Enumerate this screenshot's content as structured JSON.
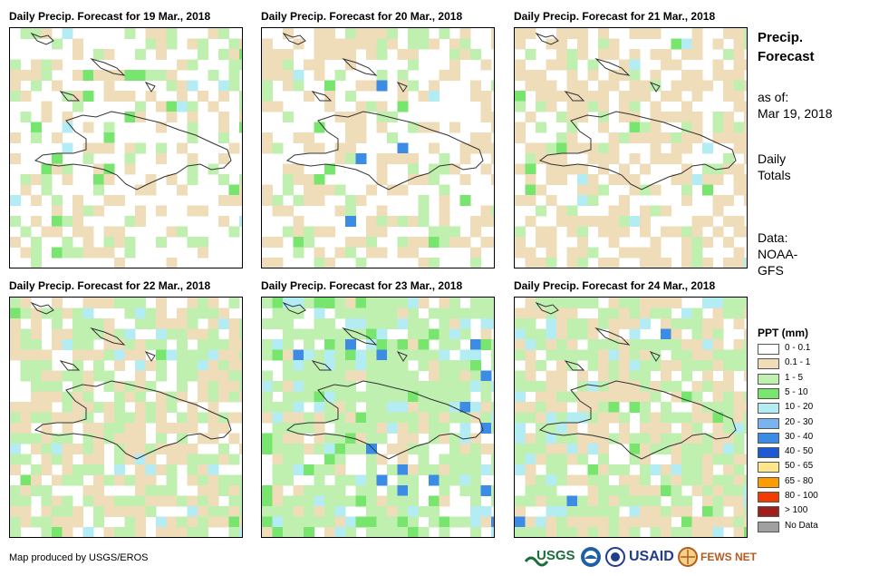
{
  "panels": [
    {
      "title": "Daily Precip. Forecast for 19 Mar., 2018"
    },
    {
      "title": "Daily Precip. Forecast for 20 Mar., 2018"
    },
    {
      "title": "Daily Precip. Forecast for 21 Mar., 2018"
    },
    {
      "title": "Daily Precip. Forecast for 22 Mar., 2018"
    },
    {
      "title": "Daily Precip. Forecast for 23 Mar., 2018"
    },
    {
      "title": "Daily Precip. Forecast for 24 Mar., 2018"
    }
  ],
  "sidebar": {
    "heading_line1": "Precip.",
    "heading_line2": "Forecast",
    "asof_label": "as of:",
    "asof_date": "Mar 19, 2018",
    "totals_line1": "Daily",
    "totals_line2": "Totals",
    "data_line1": "Data:",
    "data_line2": "NOAA-",
    "data_line3": "GFS"
  },
  "legend": {
    "title": "PPT (mm)",
    "items": [
      {
        "label": "0 - 0.1",
        "color": "#ffffff"
      },
      {
        "label": "0.1 - 1",
        "color": "#efdcb8"
      },
      {
        "label": "1 - 5",
        "color": "#bff0b0"
      },
      {
        "label": "5 - 10",
        "color": "#78e66e"
      },
      {
        "label": "10 - 20",
        "color": "#b4ecf4"
      },
      {
        "label": "20 - 30",
        "color": "#78b4f0"
      },
      {
        "label": "30 - 40",
        "color": "#3c8ce6"
      },
      {
        "label": "40 - 50",
        "color": "#1e5ad2"
      },
      {
        "label": "50 - 65",
        "color": "#ffe68c"
      },
      {
        "label": "65 - 80",
        "color": "#ff9b00"
      },
      {
        "label": "80 - 100",
        "color": "#f03c00"
      },
      {
        "label": "> 100",
        "color": "#a01e1e"
      },
      {
        "label": "No Data",
        "color": "#a0a0a0"
      }
    ]
  },
  "footer": {
    "credit": "Map produced by USGS/EROS",
    "logo_usgs": "USGS",
    "logo_usaid": "USAID",
    "logo_fewsnet": "FEWS NET"
  }
}
